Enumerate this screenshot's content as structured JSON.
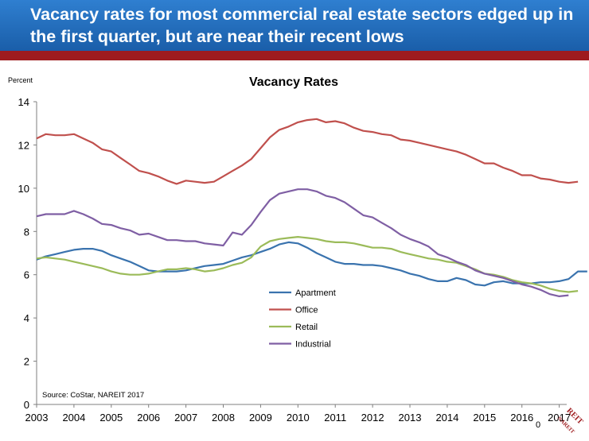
{
  "header": {
    "title": "Vacancy rates for most commercial real estate  sectors edged up in the first quarter, but are near their recent lows"
  },
  "page_number": "0",
  "logo_text": "REIT NAREIT",
  "colors": {
    "banner": "#2a76c6",
    "accent_bar": "#9e1b1e",
    "apartment": "#3a73ae",
    "office": "#c0504d",
    "retail": "#9bbb59",
    "industrial": "#7f5fa4"
  },
  "chart_data": {
    "type": "line",
    "title": "Vacancy Rates",
    "ylabel": "Percent",
    "xlabel": "",
    "ylim": [
      0,
      14
    ],
    "xlim": [
      2003,
      2017.2
    ],
    "yticks": [
      0,
      2,
      4,
      6,
      8,
      10,
      12,
      14
    ],
    "xticks": [
      2003,
      2004,
      2005,
      2006,
      2007,
      2008,
      2009,
      2010,
      2011,
      2012,
      2013,
      2014,
      2015,
      2016,
      2017
    ],
    "grid": false,
    "legend": "center",
    "source": "Source: CoStar, NAREIT 2017",
    "series": [
      {
        "name": "Apartment",
        "color": "#3a73ae",
        "x_start": 2003,
        "step": 0.25,
        "values": [
          6.7,
          6.85,
          6.95,
          7.05,
          7.15,
          7.2,
          7.2,
          7.1,
          6.9,
          6.75,
          6.6,
          6.4,
          6.2,
          6.15,
          6.15,
          6.15,
          6.2,
          6.3,
          6.4,
          6.45,
          6.5,
          6.65,
          6.8,
          6.9,
          7.05,
          7.2,
          7.4,
          7.5,
          7.45,
          7.25,
          7.0,
          6.8,
          6.6,
          6.5,
          6.5,
          6.45,
          6.45,
          6.4,
          6.3,
          6.2,
          6.05,
          5.95,
          5.8,
          5.7,
          5.7,
          5.85,
          5.75,
          5.55,
          5.5,
          5.65,
          5.7,
          5.6,
          5.6,
          5.6,
          5.65,
          5.65,
          5.7,
          5.8,
          6.15,
          6.15
        ]
      },
      {
        "name": "Office",
        "color": "#c0504d",
        "x_start": 2003,
        "step": 0.25,
        "values": [
          12.3,
          12.5,
          12.45,
          12.45,
          12.5,
          12.3,
          12.1,
          11.8,
          11.7,
          11.4,
          11.1,
          10.8,
          10.7,
          10.55,
          10.35,
          10.2,
          10.35,
          10.3,
          10.25,
          10.3,
          10.55,
          10.8,
          11.05,
          11.35,
          11.85,
          12.35,
          12.7,
          12.85,
          13.05,
          13.15,
          13.2,
          13.05,
          13.1,
          13.0,
          12.8,
          12.65,
          12.6,
          12.5,
          12.45,
          12.25,
          12.2,
          12.1,
          12.0,
          11.9,
          11.8,
          11.7,
          11.55,
          11.35,
          11.15,
          11.15,
          10.95,
          10.8,
          10.6,
          10.6,
          10.45,
          10.4,
          10.3,
          10.25,
          10.3
        ]
      },
      {
        "name": "Retail",
        "color": "#9bbb59",
        "x_start": 2003,
        "step": 0.25,
        "values": [
          6.75,
          6.8,
          6.75,
          6.7,
          6.6,
          6.5,
          6.4,
          6.3,
          6.15,
          6.05,
          6.0,
          6.0,
          6.05,
          6.15,
          6.25,
          6.25,
          6.3,
          6.25,
          6.15,
          6.2,
          6.3,
          6.45,
          6.55,
          6.8,
          7.3,
          7.55,
          7.65,
          7.7,
          7.75,
          7.7,
          7.65,
          7.55,
          7.5,
          7.5,
          7.45,
          7.35,
          7.25,
          7.25,
          7.2,
          7.05,
          6.95,
          6.85,
          6.75,
          6.7,
          6.6,
          6.55,
          6.4,
          6.25,
          6.05,
          6.0,
          5.9,
          5.75,
          5.65,
          5.6,
          5.5,
          5.35,
          5.25,
          5.2,
          5.25
        ]
      },
      {
        "name": "Industrial",
        "color": "#7f5fa4",
        "x_start": 2003,
        "step": 0.25,
        "values": [
          8.7,
          8.8,
          8.8,
          8.8,
          8.95,
          8.8,
          8.6,
          8.35,
          8.3,
          8.15,
          8.05,
          7.85,
          7.9,
          7.75,
          7.6,
          7.6,
          7.55,
          7.55,
          7.45,
          7.4,
          7.35,
          7.95,
          7.85,
          8.3,
          8.9,
          9.45,
          9.75,
          9.85,
          9.95,
          9.95,
          9.85,
          9.65,
          9.55,
          9.35,
          9.05,
          8.75,
          8.65,
          8.4,
          8.15,
          7.85,
          7.65,
          7.5,
          7.3,
          6.95,
          6.8,
          6.6,
          6.45,
          6.2,
          6.05,
          5.95,
          5.85,
          5.7,
          5.55,
          5.45,
          5.3,
          5.1,
          5.0,
          5.05
        ]
      }
    ]
  }
}
